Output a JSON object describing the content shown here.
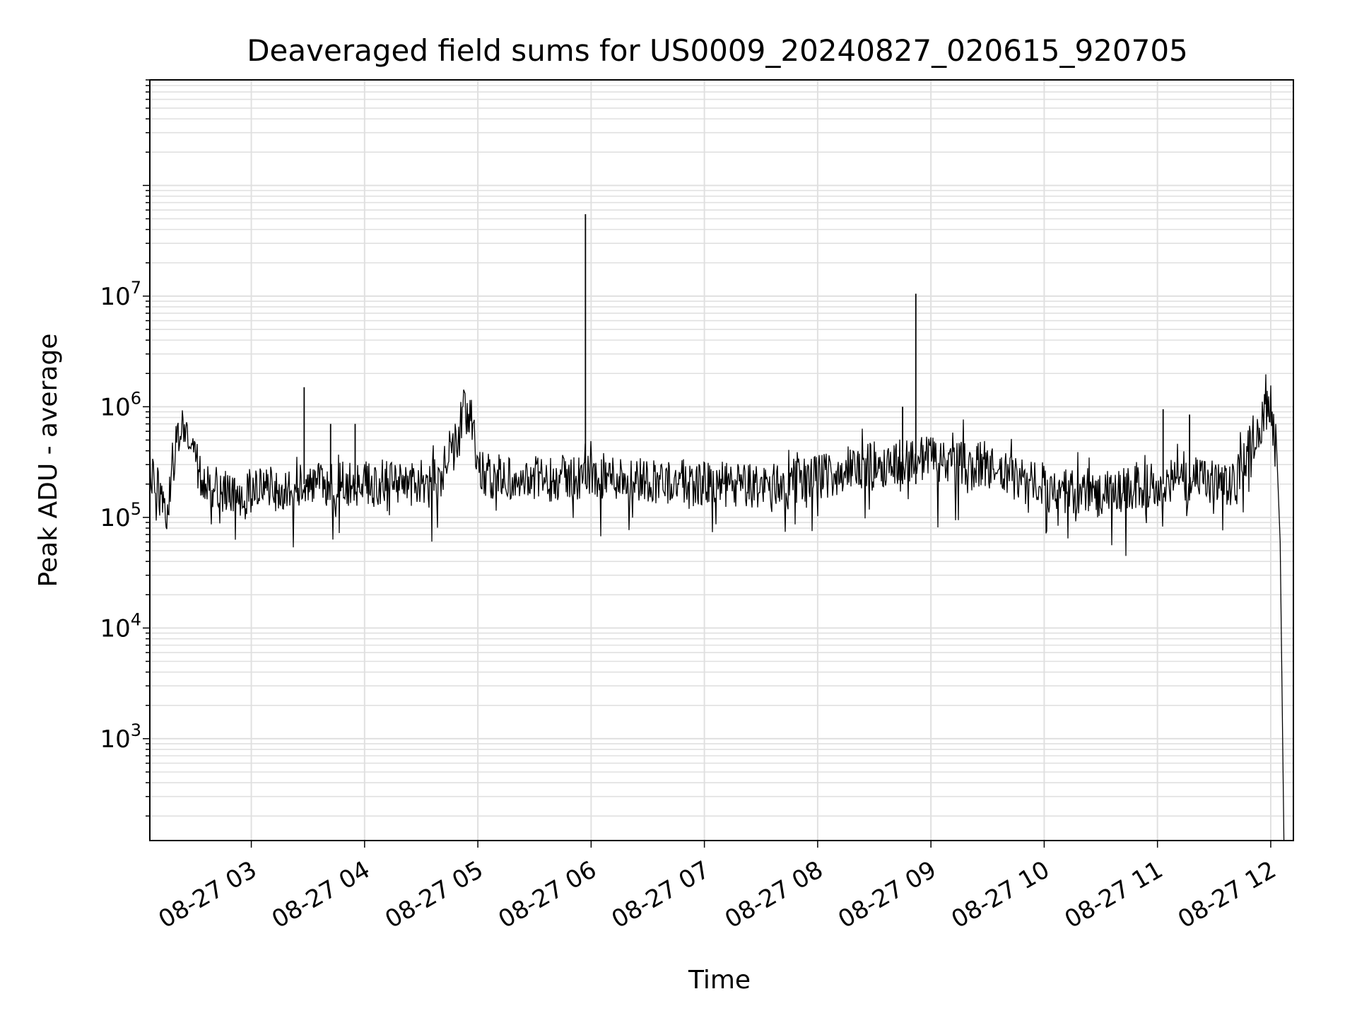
{
  "chart_data": {
    "type": "line",
    "title": "Deaveraged field sums for US0009_20240827_020615_920705",
    "xlabel": "Time",
    "ylabel": "Peak ADU - average",
    "yscale": "log",
    "ylim": [
      120,
      900000000
    ],
    "xlim": [
      "2024-08-27T02:06:15",
      "2024-08-27T12:12:00"
    ],
    "grid": true,
    "line_color": "#000000",
    "grid_color": "#e0e0e0",
    "x_ticks": [
      {
        "t": "2024-08-27T03:00",
        "label": "08-27 03"
      },
      {
        "t": "2024-08-27T04:00",
        "label": "08-27 04"
      },
      {
        "t": "2024-08-27T05:00",
        "label": "08-27 05"
      },
      {
        "t": "2024-08-27T06:00",
        "label": "08-27 06"
      },
      {
        "t": "2024-08-27T07:00",
        "label": "08-27 07"
      },
      {
        "t": "2024-08-27T08:00",
        "label": "08-27 08"
      },
      {
        "t": "2024-08-27T09:00",
        "label": "08-27 09"
      },
      {
        "t": "2024-08-27T10:00",
        "label": "08-27 10"
      },
      {
        "t": "2024-08-27T11:00",
        "label": "08-27 11"
      },
      {
        "t": "2024-08-27T12:00",
        "label": "08-27 12"
      }
    ],
    "y_ticks": [
      {
        "value": 1000,
        "base": "10",
        "exp": "3"
      },
      {
        "value": 10000,
        "base": "10",
        "exp": "4"
      },
      {
        "value": 100000,
        "base": "10",
        "exp": "5"
      },
      {
        "value": 1000000,
        "base": "10",
        "exp": "6"
      },
      {
        "value": 10000000,
        "base": "10",
        "exp": "7"
      }
    ],
    "series": [
      {
        "x": [
          "2024-08-27T02:06:15",
          "2024-08-27T02:10",
          "2024-08-27T02:15",
          "2024-08-27T02:20",
          "2024-08-27T02:25",
          "2024-08-27T02:30",
          "2024-08-27T02:35",
          "2024-08-27T02:40",
          "2024-08-27T02:50",
          "2024-08-27T03:00",
          "2024-08-27T03:15",
          "2024-08-27T03:25",
          "2024-08-27T03:40",
          "2024-08-27T04:00",
          "2024-08-27T04:20",
          "2024-08-27T04:40",
          "2024-08-27T04:47",
          "2024-08-27T04:52",
          "2024-08-27T04:57",
          "2024-08-27T05:00",
          "2024-08-27T05:10",
          "2024-08-27T05:30",
          "2024-08-27T05:50",
          "2024-08-27T06:00",
          "2024-08-27T06:30",
          "2024-08-27T07:00",
          "2024-08-27T07:30",
          "2024-08-27T08:00",
          "2024-08-27T08:30",
          "2024-08-27T09:00",
          "2024-08-27T09:30",
          "2024-08-27T10:00",
          "2024-08-27T10:30",
          "2024-08-27T11:00",
          "2024-08-27T11:20",
          "2024-08-27T11:40",
          "2024-08-27T11:50",
          "2024-08-27T11:55",
          "2024-08-27T12:00",
          "2024-08-27T12:03",
          "2024-08-27T12:05",
          "2024-08-27T12:07"
        ],
        "y": [
          300000,
          200000,
          100000,
          500000,
          750000,
          350000,
          200000,
          180000,
          160000,
          170000,
          180000,
          200000,
          190000,
          210000,
          200000,
          220000,
          400000,
          900000,
          800000,
          250000,
          230000,
          220000,
          230000,
          240000,
          220000,
          200000,
          190000,
          230000,
          300000,
          350000,
          280000,
          180000,
          160000,
          200000,
          220000,
          190000,
          500000,
          750000,
          1000000,
          600000,
          60000,
          100
        ],
        "spikes": [
          {
            "t": "2024-08-27T03:28",
            "y": 1500000
          },
          {
            "t": "2024-08-27T03:42",
            "y": 700000
          },
          {
            "t": "2024-08-27T03:55",
            "y": 700000
          },
          {
            "t": "2024-08-27T05:57",
            "y": 55000000
          },
          {
            "t": "2024-08-27T08:45",
            "y": 1000000
          },
          {
            "t": "2024-08-27T08:52",
            "y": 10500000
          },
          {
            "t": "2024-08-27T11:03",
            "y": 950000
          },
          {
            "t": "2024-08-27T11:17",
            "y": 850000
          }
        ]
      }
    ]
  }
}
